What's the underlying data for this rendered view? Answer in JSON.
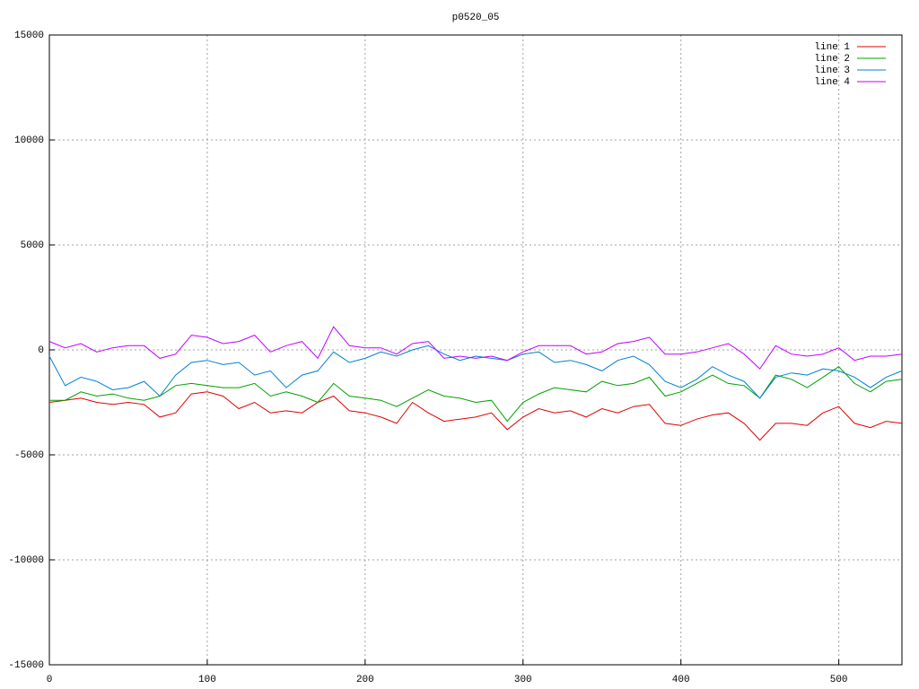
{
  "chart_data": {
    "type": "line",
    "title": "p0520_05",
    "x": [
      0,
      10,
      20,
      30,
      40,
      50,
      60,
      70,
      80,
      90,
      100,
      110,
      120,
      130,
      140,
      150,
      160,
      170,
      180,
      190,
      200,
      210,
      220,
      230,
      240,
      250,
      260,
      270,
      280,
      290,
      300,
      310,
      320,
      330,
      340,
      350,
      360,
      370,
      380,
      390,
      400,
      410,
      420,
      430,
      440,
      450,
      460,
      470,
      480,
      490,
      500,
      510,
      520,
      530,
      540
    ],
    "series": [
      {
        "name": "line 1",
        "color": "#e00000",
        "values": [
          -2500,
          -2400,
          -2300,
          -2500,
          -2600,
          -2500,
          -2600,
          -3200,
          -3000,
          -2100,
          -2000,
          -2200,
          -2800,
          -2500,
          -3000,
          -2900,
          -3000,
          -2500,
          -2200,
          -2900,
          -3000,
          -3200,
          -3500,
          -2500,
          -3000,
          -3400,
          -3300,
          -3200,
          -3000,
          -3800,
          -3200,
          -2800,
          -3000,
          -2900,
          -3200,
          -2800,
          -3000,
          -2700,
          -2600,
          -3500,
          -3600,
          -3300,
          -3100,
          -3000,
          -3500,
          -4300,
          -3500,
          -3500,
          -3600,
          -3000,
          -2700,
          -3500,
          -3700,
          -3400,
          -3500
        ]
      },
      {
        "name": "line 2",
        "color": "#00a000",
        "values": [
          -2400,
          -2400,
          -2000,
          -2200,
          -2100,
          -2300,
          -2400,
          -2200,
          -1700,
          -1600,
          -1700,
          -1800,
          -1800,
          -1600,
          -2200,
          -2000,
          -2200,
          -2500,
          -1600,
          -2200,
          -2300,
          -2400,
          -2700,
          -2300,
          -1900,
          -2200,
          -2300,
          -2500,
          -2400,
          -3400,
          -2500,
          -2100,
          -1800,
          -1900,
          -2000,
          -1500,
          -1700,
          -1600,
          -1300,
          -2200,
          -2000,
          -1600,
          -1200,
          -1600,
          -1700,
          -2300,
          -1200,
          -1400,
          -1800,
          -1300,
          -800,
          -1600,
          -2000,
          -1500,
          -1400
        ]
      },
      {
        "name": "line 3",
        "color": "#0080d0",
        "values": [
          -300,
          -1700,
          -1300,
          -1500,
          -1900,
          -1800,
          -1500,
          -2200,
          -1200,
          -600,
          -500,
          -700,
          -600,
          -1200,
          -1000,
          -1800,
          -1200,
          -1000,
          -100,
          -600,
          -400,
          -100,
          -300,
          0,
          200,
          -200,
          -500,
          -300,
          -400,
          -500,
          -200,
          -100,
          -600,
          -500,
          -700,
          -1000,
          -500,
          -300,
          -700,
          -1500,
          -1800,
          -1400,
          -800,
          -1200,
          -1500,
          -2300,
          -1300,
          -1100,
          -1200,
          -900,
          -1000,
          -1300,
          -1800,
          -1300,
          -1000
        ]
      },
      {
        "name": "line 4",
        "color": "#c000ff",
        "values": [
          400,
          100,
          300,
          -100,
          100,
          200,
          200,
          -400,
          -200,
          700,
          600,
          300,
          400,
          700,
          -100,
          200,
          400,
          -400,
          1100,
          200,
          100,
          100,
          -200,
          300,
          400,
          -400,
          -300,
          -400,
          -300,
          -500,
          -100,
          200,
          200,
          200,
          -200,
          -100,
          300,
          400,
          600,
          -200,
          -200,
          -100,
          100,
          300,
          -200,
          -900,
          200,
          -200,
          -300,
          -200,
          100,
          -500,
          -300,
          -300,
          -200
        ]
      }
    ],
    "xlim": [
      0,
      540
    ],
    "ylim": [
      -15000,
      15000
    ],
    "xticks": [
      0,
      100,
      200,
      300,
      400,
      500
    ],
    "yticks": [
      -15000,
      -10000,
      -5000,
      0,
      5000,
      10000,
      15000
    ],
    "grid": true,
    "legend": "top-right"
  }
}
